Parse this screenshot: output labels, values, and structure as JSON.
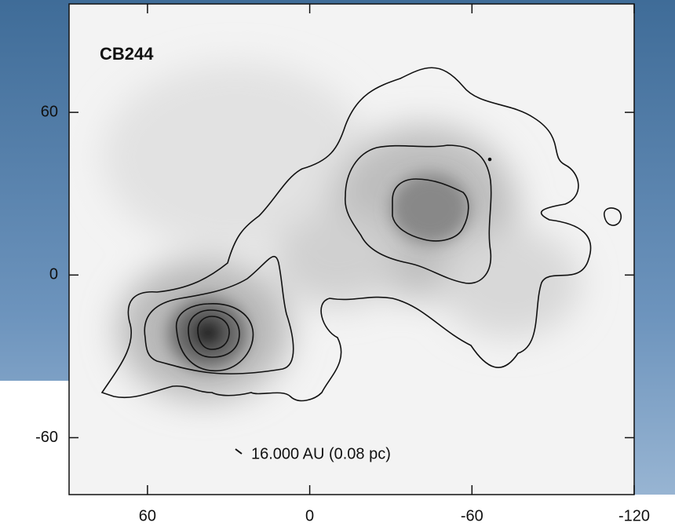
{
  "chart_data": {
    "type": "image",
    "title": "CB244",
    "annotation": "16.000 AU (0.08 pc)",
    "xlim": [
      89,
      -120
    ],
    "ylim": [
      -81,
      100
    ],
    "xticks": [
      60,
      0,
      -60,
      -120
    ],
    "yticks": [
      60,
      0,
      -60
    ]
  }
}
